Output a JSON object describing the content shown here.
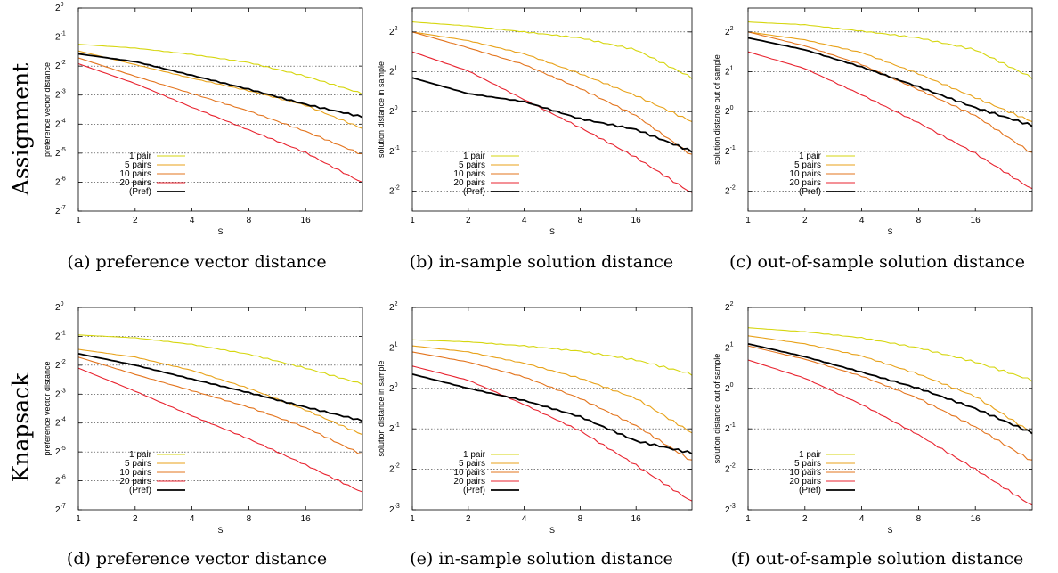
{
  "figure": {
    "row_labels": [
      "Assignment",
      "Knapsack"
    ],
    "captions": [
      "(a) preference vector distance",
      "(b) in-sample solution distance",
      "(c) out-of-sample solution distance",
      "(d) preference vector distance",
      "(e) in-sample solution distance",
      "(f) out-of-sample solution distance"
    ]
  },
  "colors": {
    "1 pair": "#d6d60f",
    "5 pairs": "#e8a21a",
    "10 pairs": "#e3741d",
    "20 pairs": "#e8232f",
    "(Pref)": "#000000",
    "grid": "#333333"
  },
  "chart_data": [
    {
      "type": "line",
      "xscale": "log2",
      "yscale": "log2",
      "xlabel": "S",
      "ylabel": "preference vector distance",
      "xlim": [
        1,
        32
      ],
      "ylim_exp": [
        -7,
        0
      ],
      "xticks": [
        "1",
        "2",
        "4",
        "8",
        "16"
      ],
      "yticks": [
        {
          "base": "2",
          "exp": "0"
        },
        {
          "base": "2",
          "exp": "-1"
        },
        {
          "base": "2",
          "exp": "-2"
        },
        {
          "base": "2",
          "exp": "-3"
        },
        {
          "base": "2",
          "exp": "-4"
        },
        {
          "base": "2",
          "exp": "-5"
        },
        {
          "base": "2",
          "exp": "-6"
        },
        {
          "base": "2",
          "exp": "-7"
        }
      ],
      "grid": true,
      "legend_position": "bottom-left",
      "series": [
        {
          "name": "1 pair",
          "x": [
            1,
            2,
            4,
            8,
            16,
            32
          ],
          "y_exp": [
            -1.25,
            -1.38,
            -1.6,
            -1.88,
            -2.35,
            -2.95
          ]
        },
        {
          "name": "5 pairs",
          "x": [
            1,
            2,
            4,
            8,
            16,
            32
          ],
          "y_exp": [
            -1.48,
            -1.95,
            -2.42,
            -2.85,
            -3.35,
            -4.15
          ]
        },
        {
          "name": "10 pairs",
          "x": [
            1,
            2,
            4,
            8,
            16,
            32
          ],
          "y_exp": [
            -1.72,
            -2.35,
            -2.95,
            -3.55,
            -4.25,
            -5.05
          ]
        },
        {
          "name": "20 pairs",
          "x": [
            1,
            2,
            4,
            8,
            16,
            32
          ],
          "y_exp": [
            -1.92,
            -2.6,
            -3.42,
            -4.2,
            -4.98,
            -6.02
          ]
        },
        {
          "name": "(Pref)",
          "x": [
            1,
            2,
            4,
            8,
            16,
            32
          ],
          "y_exp": [
            -1.58,
            -1.85,
            -2.32,
            -2.8,
            -3.32,
            -3.75
          ]
        }
      ]
    },
    {
      "type": "line",
      "xscale": "log2",
      "yscale": "log2",
      "xlabel": "S",
      "ylabel": "solution distance in sample",
      "xlim": [
        1,
        32
      ],
      "ylim_exp": [
        -2.5,
        2.6
      ],
      "xticks": [
        "1",
        "2",
        "4",
        "8",
        "16"
      ],
      "yticks": [
        {
          "base": "2",
          "exp": "2"
        },
        {
          "base": "2",
          "exp": "1"
        },
        {
          "base": "2",
          "exp": "0"
        },
        {
          "base": "2",
          "exp": "-1"
        },
        {
          "base": "2",
          "exp": "-2"
        }
      ],
      "grid": true,
      "legend_position": "bottom-left",
      "series": [
        {
          "name": "1 pair",
          "x": [
            1,
            2,
            4,
            8,
            16,
            32
          ],
          "y_exp": [
            2.25,
            2.15,
            2.0,
            1.85,
            1.55,
            0.85
          ]
        },
        {
          "name": "5 pairs",
          "x": [
            1,
            2,
            4,
            8,
            16,
            32
          ],
          "y_exp": [
            2.0,
            1.78,
            1.45,
            0.95,
            0.4,
            -0.25
          ]
        },
        {
          "name": "10 pairs",
          "x": [
            1,
            2,
            4,
            8,
            16,
            32
          ],
          "y_exp": [
            2.0,
            1.6,
            1.18,
            0.58,
            -0.1,
            -1.1
          ]
        },
        {
          "name": "20 pairs",
          "x": [
            1,
            2,
            4,
            8,
            16,
            32
          ],
          "y_exp": [
            1.5,
            1.02,
            0.3,
            -0.4,
            -1.15,
            -2.05
          ]
        },
        {
          "name": "(Pref)",
          "x": [
            1,
            2,
            4,
            8,
            16,
            32
          ],
          "y_exp": [
            0.85,
            0.45,
            0.25,
            -0.18,
            -0.45,
            -1.0
          ]
        }
      ]
    },
    {
      "type": "line",
      "xscale": "log2",
      "yscale": "log2",
      "xlabel": "S",
      "ylabel": "solution distance out of sample",
      "xlim": [
        1,
        32
      ],
      "ylim_exp": [
        -2.5,
        2.6
      ],
      "xticks": [
        "1",
        "2",
        "4",
        "8",
        "16"
      ],
      "yticks": [
        {
          "base": "2",
          "exp": "2"
        },
        {
          "base": "2",
          "exp": "1"
        },
        {
          "base": "2",
          "exp": "0"
        },
        {
          "base": "2",
          "exp": "-1"
        },
        {
          "base": "2",
          "exp": "-2"
        }
      ],
      "grid": true,
      "legend_position": "bottom-left",
      "series": [
        {
          "name": "1 pair",
          "x": [
            1,
            2,
            4,
            8,
            16,
            32
          ],
          "y_exp": [
            2.25,
            2.18,
            2.02,
            1.85,
            1.55,
            0.85
          ]
        },
        {
          "name": "5 pairs",
          "x": [
            1,
            2,
            4,
            8,
            16,
            32
          ],
          "y_exp": [
            2.0,
            1.8,
            1.48,
            0.95,
            0.35,
            -0.25
          ]
        },
        {
          "name": "10 pairs",
          "x": [
            1,
            2,
            4,
            8,
            16,
            32
          ],
          "y_exp": [
            2.0,
            1.65,
            1.18,
            0.55,
            -0.1,
            -1.05
          ]
        },
        {
          "name": "20 pairs",
          "x": [
            1,
            2,
            4,
            8,
            16,
            32
          ],
          "y_exp": [
            1.5,
            1.08,
            0.42,
            -0.28,
            -1.05,
            -1.95
          ]
        },
        {
          "name": "(Pref)",
          "x": [
            1,
            2,
            4,
            8,
            16,
            32
          ],
          "y_exp": [
            1.85,
            1.55,
            1.12,
            0.62,
            0.1,
            -0.35
          ]
        }
      ]
    },
    {
      "type": "line",
      "xscale": "log2",
      "yscale": "log2",
      "xlabel": "S",
      "ylabel": "preference vector distance",
      "xlim": [
        1,
        32
      ],
      "ylim_exp": [
        -7,
        0
      ],
      "xticks": [
        "1",
        "2",
        "4",
        "8",
        "16"
      ],
      "yticks": [
        {
          "base": "2",
          "exp": "0"
        },
        {
          "base": "2",
          "exp": "-1"
        },
        {
          "base": "2",
          "exp": "-2"
        },
        {
          "base": "2",
          "exp": "-3"
        },
        {
          "base": "2",
          "exp": "-4"
        },
        {
          "base": "2",
          "exp": "-5"
        },
        {
          "base": "2",
          "exp": "-6"
        },
        {
          "base": "2",
          "exp": "-7"
        }
      ],
      "grid": true,
      "legend_position": "bottom-left",
      "series": [
        {
          "name": "1 pair",
          "x": [
            1,
            2,
            4,
            8,
            16,
            32
          ],
          "y_exp": [
            -0.95,
            -1.05,
            -1.28,
            -1.62,
            -2.1,
            -2.65
          ]
        },
        {
          "name": "5 pairs",
          "x": [
            1,
            2,
            4,
            8,
            16,
            32
          ],
          "y_exp": [
            -1.45,
            -1.72,
            -2.18,
            -2.8,
            -3.55,
            -4.4
          ]
        },
        {
          "name": "10 pairs",
          "x": [
            1,
            2,
            4,
            8,
            16,
            32
          ],
          "y_exp": [
            -1.72,
            -2.32,
            -2.88,
            -3.45,
            -4.15,
            -5.1
          ]
        },
        {
          "name": "20 pairs",
          "x": [
            1,
            2,
            4,
            8,
            16,
            32
          ],
          "y_exp": [
            -2.1,
            -2.9,
            -3.75,
            -4.55,
            -5.45,
            -6.4
          ]
        },
        {
          "name": "(Pref)",
          "x": [
            1,
            2,
            4,
            8,
            16,
            32
          ],
          "y_exp": [
            -1.6,
            -2.0,
            -2.48,
            -2.95,
            -3.45,
            -3.92
          ]
        }
      ]
    },
    {
      "type": "line",
      "xscale": "log2",
      "yscale": "log2",
      "xlabel": "S",
      "ylabel": "solution distance in sample",
      "xlim": [
        1,
        32
      ],
      "ylim_exp": [
        -3,
        2
      ],
      "xticks": [
        "1",
        "2",
        "4",
        "8",
        "16"
      ],
      "yticks": [
        {
          "base": "2",
          "exp": "2"
        },
        {
          "base": "2",
          "exp": "1"
        },
        {
          "base": "2",
          "exp": "0"
        },
        {
          "base": "2",
          "exp": "-1"
        },
        {
          "base": "2",
          "exp": "-2"
        },
        {
          "base": "2",
          "exp": "-3"
        }
      ],
      "grid": true,
      "legend_position": "bottom-left",
      "series": [
        {
          "name": "1 pair",
          "x": [
            1,
            2,
            4,
            8,
            16,
            32
          ],
          "y_exp": [
            1.2,
            1.15,
            1.05,
            0.92,
            0.7,
            0.35
          ]
        },
        {
          "name": "5 pairs",
          "x": [
            1,
            2,
            4,
            8,
            16,
            32
          ],
          "y_exp": [
            1.05,
            0.9,
            0.62,
            0.25,
            -0.25,
            -1.1
          ]
        },
        {
          "name": "10 pairs",
          "x": [
            1,
            2,
            4,
            8,
            16,
            32
          ],
          "y_exp": [
            0.9,
            0.65,
            0.28,
            -0.25,
            -0.92,
            -1.8
          ]
        },
        {
          "name": "20 pairs",
          "x": [
            1,
            2,
            4,
            8,
            16,
            32
          ],
          "y_exp": [
            0.55,
            0.2,
            -0.4,
            -1.05,
            -1.9,
            -2.8
          ]
        },
        {
          "name": "(Pref)",
          "x": [
            1,
            2,
            4,
            8,
            16,
            32
          ],
          "y_exp": [
            0.35,
            0.0,
            -0.3,
            -0.7,
            -1.3,
            -1.6
          ]
        }
      ]
    },
    {
      "type": "line",
      "xscale": "log2",
      "yscale": "log2",
      "xlabel": "S",
      "ylabel": "solution distance out of sample",
      "xlim": [
        1,
        32
      ],
      "ylim_exp": [
        -3,
        2
      ],
      "xticks": [
        "1",
        "2",
        "4",
        "8",
        "16"
      ],
      "yticks": [
        {
          "base": "2",
          "exp": "2"
        },
        {
          "base": "2",
          "exp": "1"
        },
        {
          "base": "2",
          "exp": "0"
        },
        {
          "base": "2",
          "exp": "-1"
        },
        {
          "base": "2",
          "exp": "-2"
        },
        {
          "base": "2",
          "exp": "-3"
        }
      ],
      "grid": true,
      "legend_position": "bottom-left",
      "series": [
        {
          "name": "1 pair",
          "x": [
            1,
            2,
            4,
            8,
            16,
            32
          ],
          "y_exp": [
            1.5,
            1.4,
            1.25,
            1.0,
            0.65,
            0.2
          ]
        },
        {
          "name": "5 pairs",
          "x": [
            1,
            2,
            4,
            8,
            16,
            32
          ],
          "y_exp": [
            1.3,
            1.1,
            0.8,
            0.35,
            -0.2,
            -1.1
          ]
        },
        {
          "name": "10 pairs",
          "x": [
            1,
            2,
            4,
            8,
            16,
            32
          ],
          "y_exp": [
            1.05,
            0.72,
            0.3,
            -0.25,
            -0.95,
            -1.8
          ]
        },
        {
          "name": "20 pairs",
          "x": [
            1,
            2,
            4,
            8,
            16,
            32
          ],
          "y_exp": [
            0.7,
            0.25,
            -0.4,
            -1.15,
            -2.0,
            -2.9
          ]
        },
        {
          "name": "(Pref)",
          "x": [
            1,
            2,
            4,
            8,
            16,
            32
          ],
          "y_exp": [
            1.1,
            0.78,
            0.4,
            0.0,
            -0.5,
            -1.1
          ]
        }
      ]
    }
  ]
}
